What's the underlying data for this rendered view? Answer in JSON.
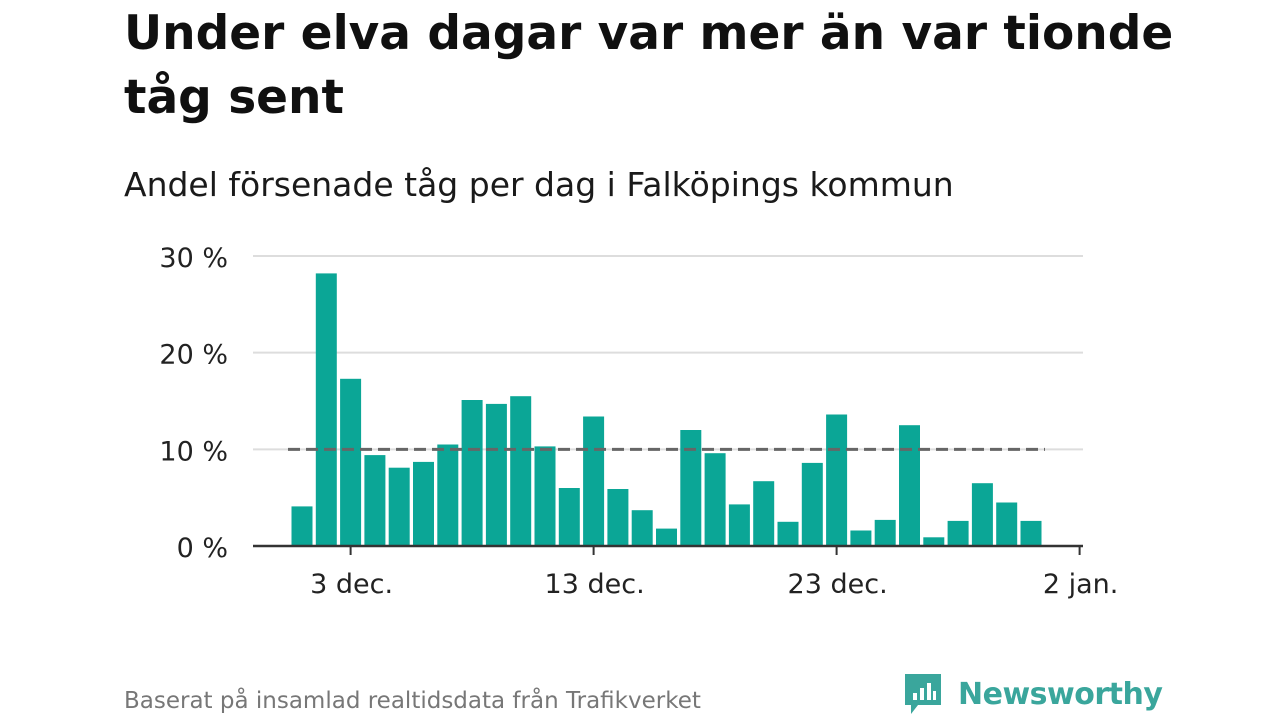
{
  "title": "Under elva dagar var mer än var tionde tåg sent",
  "subtitle": "Andel försenade tåg per dag i Falköpings kommun",
  "source": "Baserat på insamlad realtidsdata från Trafikverket",
  "brand": {
    "name": "Newsworthy",
    "icon": "newsworthy-logo-icon",
    "color": "#3aa69c"
  },
  "chart_data": {
    "type": "bar",
    "title": "Under elva dagar var mer än var tionde tåg sent",
    "subtitle": "Andel försenade tåg per dag i Falköpings kommun",
    "xlabel": "",
    "ylabel": "",
    "unit": "%",
    "categories": [
      "2023-12-01",
      "2023-12-02",
      "2023-12-03",
      "2023-12-04",
      "2023-12-05",
      "2023-12-06",
      "2023-12-07",
      "2023-12-08",
      "2023-12-09",
      "2023-12-10",
      "2023-12-11",
      "2023-12-12",
      "2023-12-13",
      "2023-12-14",
      "2023-12-15",
      "2023-12-16",
      "2023-12-17",
      "2023-12-18",
      "2023-12-19",
      "2023-12-20",
      "2023-12-21",
      "2023-12-22",
      "2023-12-23",
      "2023-12-24",
      "2023-12-25",
      "2023-12-26",
      "2023-12-27",
      "2023-12-28",
      "2023-12-29",
      "2023-12-30",
      "2023-12-31"
    ],
    "values": [
      4.1,
      28.2,
      17.3,
      9.4,
      8.1,
      8.7,
      10.5,
      15.1,
      14.7,
      15.5,
      10.3,
      6.0,
      13.4,
      5.9,
      3.7,
      1.8,
      12.0,
      9.6,
      4.3,
      6.7,
      2.5,
      8.6,
      13.6,
      1.6,
      2.7,
      12.5,
      0.9,
      2.6,
      6.5,
      4.5,
      2.6
    ],
    "reference_line": {
      "value": 10,
      "style": "dashed",
      "color": "#666666"
    },
    "ylim": [
      0,
      30
    ],
    "yticks": [
      0,
      10,
      20,
      30
    ],
    "ytick_labels": [
      "0 %",
      "10 %",
      "20 %",
      "30 %"
    ],
    "xticks": [
      {
        "date": "2023-12-03",
        "label": "3 dec."
      },
      {
        "date": "2023-12-13",
        "label": "13 dec."
      },
      {
        "date": "2023-12-23",
        "label": "23 dec."
      },
      {
        "date": "2024-01-02",
        "label": "2 jan."
      }
    ],
    "bar_color": "#0ba696",
    "grid": true
  }
}
